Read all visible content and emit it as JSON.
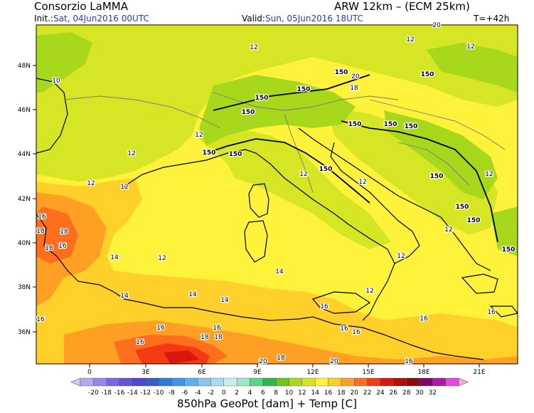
{
  "header": {
    "title_left": "Consorzio LaMMA",
    "title_right": "ARW 12km – (ECM 25km)",
    "init_label": "Init.:",
    "init_value": "Sat, 04Jun2016 00UTC",
    "valid_label": "Valid:",
    "valid_value": "Sun, 05Jun2016 18UTC",
    "forecast_time": "T=+42h"
  },
  "axes": {
    "lat_labels": [
      "48N",
      "46N",
      "44N",
      "42N",
      "40N",
      "38N",
      "36N"
    ],
    "lon_labels": [
      "0",
      "3E",
      "6E",
      "9E",
      "12E",
      "15E",
      "18E",
      "21E"
    ]
  },
  "colorbar": {
    "labels": [
      "-20",
      "-18",
      "-16",
      "-14",
      "-12",
      "-10",
      "-8",
      "-6",
      "-4",
      "-2",
      "0",
      "2",
      "4",
      "6",
      "8",
      "10",
      "12",
      "14",
      "16",
      "18",
      "20",
      "22",
      "24",
      "26",
      "28",
      "30",
      "32"
    ],
    "colors": [
      "#b8a6f0",
      "#9a86ea",
      "#7a66e2",
      "#5e55d8",
      "#4a4ad0",
      "#3a5ccc",
      "#2f78d6",
      "#3c96e4",
      "#5fb0ec",
      "#86c6f0",
      "#a8dcf2",
      "#c8eef0",
      "#9ee6c4",
      "#5cd28c",
      "#2cb84c",
      "#6cc818",
      "#a8d81c",
      "#d6e624",
      "#fff23a",
      "#ffcf2a",
      "#ffa024",
      "#ff6e1c",
      "#f43a12",
      "#d8180e",
      "#b0100c",
      "#8a0c0a",
      "#7a0a6e",
      "#b016a8",
      "#e84ae0"
    ],
    "title": "850hPa GeoPot [dam] + Temp [C]"
  },
  "temperature_labels": [
    "12",
    "12",
    "12",
    "10",
    "12",
    "12",
    "12",
    "12",
    "12",
    "12",
    "12",
    "12",
    "12",
    "12",
    "12",
    "14",
    "14",
    "14",
    "14",
    "14",
    "16",
    "16",
    "16",
    "16",
    "16",
    "16",
    "16",
    "16",
    "16",
    "16",
    "16",
    "16",
    "18",
    "18",
    "18",
    "18",
    "18",
    "18",
    "18",
    "20",
    "20",
    "20",
    "20"
  ],
  "geopotential_labels": [
    "150",
    "150",
    "150",
    "150",
    "150",
    "150",
    "150",
    "150",
    "150",
    "150",
    "150",
    "150",
    "150",
    "150",
    "150"
  ]
}
